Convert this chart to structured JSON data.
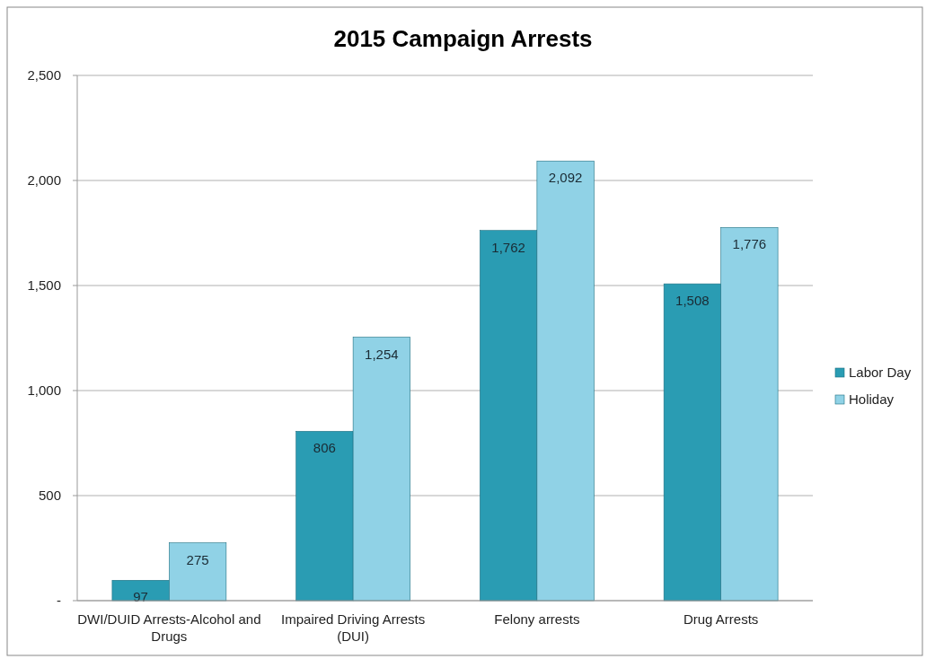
{
  "chart_data": {
    "type": "bar",
    "title": "2015 Campaign Arrests",
    "categories": [
      "DWI/DUID Arrests-Alcohol and Drugs",
      "Impaired Driving Arrests (DUI)",
      "Felony arrests",
      "Drug Arrests"
    ],
    "series": [
      {
        "name": "Labor Day",
        "color": "#2a9cb3",
        "values": [
          97,
          806,
          1762,
          1508
        ],
        "value_labels": [
          "97",
          "806",
          "1,762",
          "1,508"
        ]
      },
      {
        "name": "Holiday",
        "color": "#90d2e6",
        "values": [
          275,
          1254,
          2092,
          1776
        ],
        "value_labels": [
          "275",
          "1,254",
          "2,092",
          "1,776"
        ]
      }
    ],
    "ylim": [
      0,
      2500
    ],
    "yticks": [
      {
        "value": 0,
        "label": "-"
      },
      500,
      {
        "value": 1000,
        "label": "1,000"
      },
      {
        "value": 1500,
        "label": "1,500"
      },
      {
        "value": 2000,
        "label": "2,000"
      },
      {
        "value": 2500,
        "label": "2,500"
      }
    ],
    "grid": "y",
    "legend": "right"
  }
}
